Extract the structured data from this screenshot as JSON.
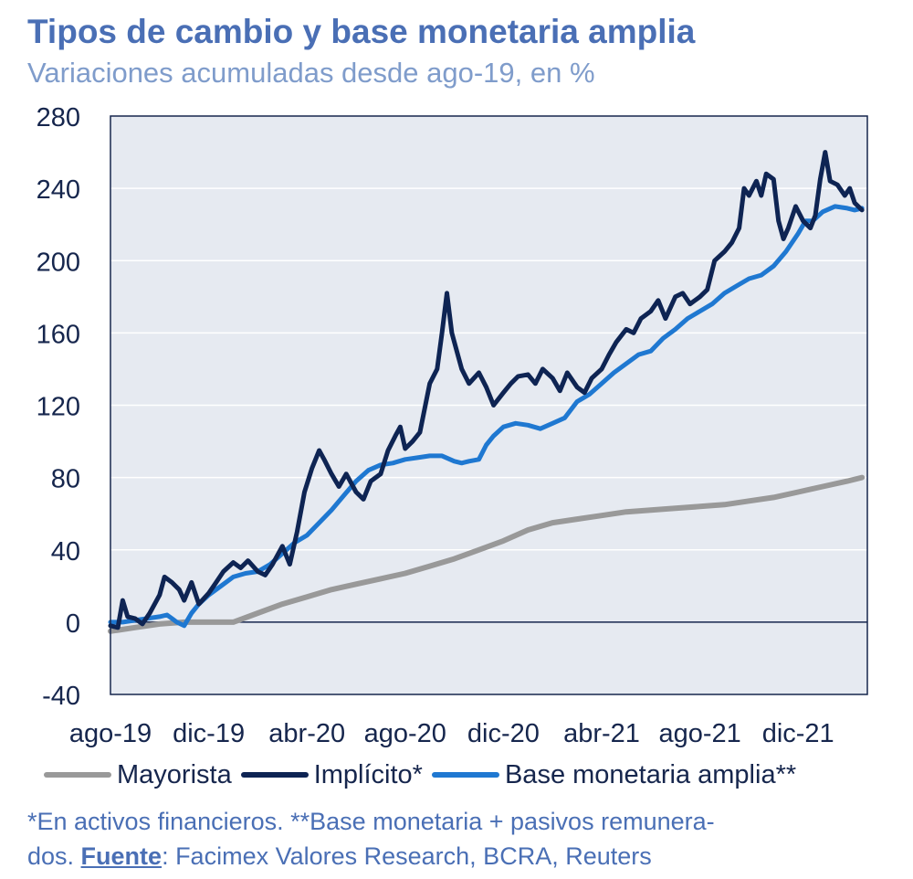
{
  "title": "Tipos de cambio y base monetaria amplia",
  "subtitle": "Variaciones acumuladas desde ago-19, en %",
  "footnote": {
    "line1": "*En activos financieros. **Base monetaria + pasivos remunera-",
    "line2_prefix": "dos. ",
    "source_label": "Fuente",
    "source_text": ": Facimex Valores Research, BCRA, Reuters"
  },
  "colors": {
    "mayorista": "#999999",
    "implicito": "#0e2453",
    "base": "#1f78d1",
    "plot_bg": "#e6eaf1",
    "grid": "#ffffff",
    "frame": "#16264d",
    "text": "#16264d"
  },
  "chart_data": {
    "type": "line",
    "title": "Tipos de cambio y base monetaria amplia",
    "subtitle": "Variaciones acumuladas desde ago-19, en %",
    "xlabel": "",
    "ylabel": "",
    "ylim": [
      -40,
      280
    ],
    "yticks": [
      -40,
      0,
      40,
      80,
      120,
      160,
      200,
      240,
      280
    ],
    "xlim": [
      0,
      30.7
    ],
    "x_unit": "months since ago-19",
    "x_ticks": [
      {
        "x": 0,
        "label": "ago-19"
      },
      {
        "x": 4,
        "label": "dic-19"
      },
      {
        "x": 8,
        "label": "abr-20"
      },
      {
        "x": 12,
        "label": "ago-20"
      },
      {
        "x": 16,
        "label": "dic-20"
      },
      {
        "x": 20,
        "label": "abr-21"
      },
      {
        "x": 24,
        "label": "ago-21"
      },
      {
        "x": 28,
        "label": "dic-21"
      }
    ],
    "grid": true,
    "legend_position": "bottom",
    "series": [
      {
        "name": "Mayorista",
        "points": [
          [
            0,
            -5
          ],
          [
            1,
            -3
          ],
          [
            2,
            -1
          ],
          [
            3,
            0
          ],
          [
            4,
            0
          ],
          [
            5,
            0
          ],
          [
            6,
            5
          ],
          [
            7,
            10
          ],
          [
            8,
            14
          ],
          [
            9,
            18
          ],
          [
            10,
            21
          ],
          [
            11,
            24
          ],
          [
            12,
            27
          ],
          [
            13,
            31
          ],
          [
            14,
            35
          ],
          [
            15,
            40
          ],
          [
            16,
            45
          ],
          [
            17,
            51
          ],
          [
            18,
            55
          ],
          [
            19,
            57
          ],
          [
            20,
            59
          ],
          [
            21,
            61
          ],
          [
            22,
            62
          ],
          [
            23,
            63
          ],
          [
            24,
            64
          ],
          [
            25,
            65
          ],
          [
            26,
            67
          ],
          [
            27,
            69
          ],
          [
            28,
            72
          ],
          [
            29,
            75
          ],
          [
            30,
            78
          ],
          [
            30.6,
            80
          ]
        ]
      },
      {
        "name": "Implícito*",
        "points": [
          [
            0,
            -2
          ],
          [
            0.3,
            -3
          ],
          [
            0.5,
            12
          ],
          [
            0.7,
            3
          ],
          [
            1,
            2
          ],
          [
            1.3,
            -1
          ],
          [
            1.6,
            5
          ],
          [
            2,
            15
          ],
          [
            2.2,
            25
          ],
          [
            2.5,
            22
          ],
          [
            2.8,
            18
          ],
          [
            3,
            12
          ],
          [
            3.3,
            22
          ],
          [
            3.6,
            10
          ],
          [
            4,
            16
          ],
          [
            4.3,
            22
          ],
          [
            4.6,
            28
          ],
          [
            5,
            33
          ],
          [
            5.3,
            30
          ],
          [
            5.6,
            34
          ],
          [
            6,
            28
          ],
          [
            6.3,
            26
          ],
          [
            6.6,
            32
          ],
          [
            7,
            42
          ],
          [
            7.3,
            32
          ],
          [
            7.6,
            50
          ],
          [
            7.9,
            72
          ],
          [
            8.2,
            85
          ],
          [
            8.5,
            95
          ],
          [
            8.7,
            90
          ],
          [
            9,
            82
          ],
          [
            9.3,
            75
          ],
          [
            9.6,
            82
          ],
          [
            10,
            72
          ],
          [
            10.3,
            68
          ],
          [
            10.6,
            78
          ],
          [
            11,
            82
          ],
          [
            11.3,
            95
          ],
          [
            11.6,
            103
          ],
          [
            11.8,
            108
          ],
          [
            12,
            96
          ],
          [
            12.3,
            100
          ],
          [
            12.6,
            105
          ],
          [
            13,
            132
          ],
          [
            13.3,
            140
          ],
          [
            13.5,
            160
          ],
          [
            13.7,
            182
          ],
          [
            13.9,
            160
          ],
          [
            14.1,
            150
          ],
          [
            14.3,
            140
          ],
          [
            14.6,
            132
          ],
          [
            15,
            138
          ],
          [
            15.3,
            130
          ],
          [
            15.6,
            120
          ],
          [
            16,
            127
          ],
          [
            16.3,
            132
          ],
          [
            16.6,
            136
          ],
          [
            17,
            137
          ],
          [
            17.3,
            132
          ],
          [
            17.6,
            140
          ],
          [
            18,
            135
          ],
          [
            18.3,
            128
          ],
          [
            18.6,
            138
          ],
          [
            19,
            130
          ],
          [
            19.3,
            127
          ],
          [
            19.6,
            135
          ],
          [
            20,
            140
          ],
          [
            20.3,
            148
          ],
          [
            20.6,
            155
          ],
          [
            21,
            162
          ],
          [
            21.3,
            160
          ],
          [
            21.6,
            168
          ],
          [
            22,
            172
          ],
          [
            22.3,
            178
          ],
          [
            22.6,
            168
          ],
          [
            23,
            180
          ],
          [
            23.3,
            182
          ],
          [
            23.6,
            176
          ],
          [
            24,
            180
          ],
          [
            24.3,
            184
          ],
          [
            24.6,
            200
          ],
          [
            25,
            205
          ],
          [
            25.3,
            210
          ],
          [
            25.6,
            218
          ],
          [
            25.8,
            240
          ],
          [
            26,
            236
          ],
          [
            26.3,
            244
          ],
          [
            26.5,
            236
          ],
          [
            26.7,
            248
          ],
          [
            27,
            245
          ],
          [
            27.2,
            222
          ],
          [
            27.4,
            212
          ],
          [
            27.6,
            218
          ],
          [
            27.9,
            230
          ],
          [
            28.2,
            222
          ],
          [
            28.5,
            218
          ],
          [
            28.7,
            225
          ],
          [
            28.9,
            245
          ],
          [
            29.1,
            260
          ],
          [
            29.3,
            244
          ],
          [
            29.6,
            242
          ],
          [
            29.9,
            236
          ],
          [
            30.1,
            240
          ],
          [
            30.3,
            232
          ],
          [
            30.6,
            228
          ]
        ]
      },
      {
        "name": "Base monetaria amplia**",
        "points": [
          [
            0,
            0
          ],
          [
            0.5,
            0
          ],
          [
            1,
            1
          ],
          [
            1.5,
            2
          ],
          [
            2,
            3
          ],
          [
            2.3,
            4
          ],
          [
            2.5,
            2
          ],
          [
            2.7,
            0
          ],
          [
            3,
            -2
          ],
          [
            3.3,
            5
          ],
          [
            3.6,
            10
          ],
          [
            4,
            15
          ],
          [
            4.5,
            20
          ],
          [
            5,
            25
          ],
          [
            5.5,
            27
          ],
          [
            6,
            28
          ],
          [
            6.5,
            32
          ],
          [
            7,
            38
          ],
          [
            7.5,
            44
          ],
          [
            8,
            48
          ],
          [
            8.5,
            55
          ],
          [
            9,
            62
          ],
          [
            9.5,
            70
          ],
          [
            10,
            78
          ],
          [
            10.5,
            84
          ],
          [
            11,
            87
          ],
          [
            11.5,
            88
          ],
          [
            12,
            90
          ],
          [
            12.5,
            91
          ],
          [
            13,
            92
          ],
          [
            13.5,
            92
          ],
          [
            14,
            89
          ],
          [
            14.3,
            88
          ],
          [
            14.6,
            89
          ],
          [
            15,
            90
          ],
          [
            15.3,
            98
          ],
          [
            15.6,
            103
          ],
          [
            16,
            108
          ],
          [
            16.5,
            110
          ],
          [
            17,
            109
          ],
          [
            17.5,
            107
          ],
          [
            18,
            110
          ],
          [
            18.5,
            113
          ],
          [
            19,
            122
          ],
          [
            19.5,
            126
          ],
          [
            20,
            132
          ],
          [
            20.5,
            138
          ],
          [
            21,
            143
          ],
          [
            21.5,
            148
          ],
          [
            22,
            150
          ],
          [
            22.5,
            157
          ],
          [
            23,
            162
          ],
          [
            23.5,
            168
          ],
          [
            24,
            172
          ],
          [
            24.5,
            176
          ],
          [
            25,
            182
          ],
          [
            25.5,
            186
          ],
          [
            26,
            190
          ],
          [
            26.5,
            192
          ],
          [
            27,
            197
          ],
          [
            27.5,
            205
          ],
          [
            28,
            215
          ],
          [
            28.3,
            222
          ],
          [
            28.6,
            222
          ],
          [
            29,
            227
          ],
          [
            29.5,
            230
          ],
          [
            30,
            229
          ],
          [
            30.3,
            228
          ],
          [
            30.6,
            229
          ]
        ]
      }
    ]
  }
}
